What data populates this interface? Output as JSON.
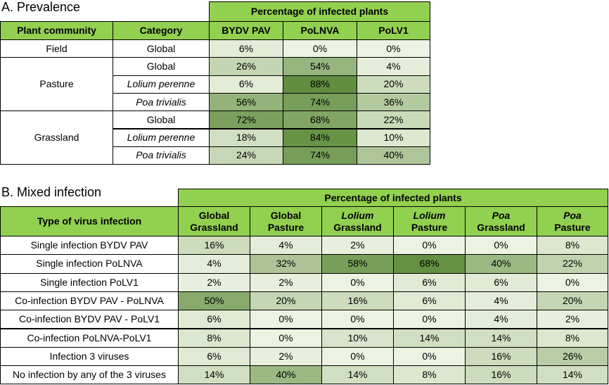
{
  "prevalence": {
    "title": "A. Prevalence",
    "header_group": "Percentage of infected plants",
    "headers": [
      "Plant community",
      "Category",
      "BYDV PAV",
      "PoLNVA",
      "PoLV1"
    ],
    "groups": [
      {
        "community": "Field",
        "rows": [
          {
            "category": "Global",
            "values": [
              "6%",
              "0%",
              "0%"
            ]
          }
        ]
      },
      {
        "community": "Pasture",
        "rows": [
          {
            "category": "Global",
            "values": [
              "26%",
              "54%",
              "4%"
            ]
          },
          {
            "category": "Lolium perenne",
            "values": [
              "6%",
              "88%",
              "20%"
            ]
          },
          {
            "category": "Poa trivialis",
            "values": [
              "56%",
              "74%",
              "36%"
            ]
          }
        ]
      },
      {
        "community": "Grassland",
        "rows": [
          {
            "category": "Global",
            "values": [
              "72%",
              "68%",
              "22%"
            ]
          },
          {
            "category": "Lolium perenne",
            "values": [
              "18%",
              "84%",
              "10%"
            ]
          },
          {
            "category": "Poa trivialis",
            "values": [
              "24%",
              "74%",
              "40%"
            ]
          }
        ]
      }
    ]
  },
  "mixed": {
    "title": "B. Mixed infection",
    "header_group": "Percentage of infected plants",
    "row_header": "Type of virus infection",
    "columns": [
      [
        "Global",
        "Grassland"
      ],
      [
        "Global",
        "Pasture"
      ],
      [
        "Lolium",
        "Grassland"
      ],
      [
        "Lolium",
        "Pasture"
      ],
      [
        "Poa",
        "Grassland"
      ],
      [
        "Poa",
        "Pasture"
      ]
    ],
    "rows": [
      {
        "label": "Single infection BYDV PAV",
        "values": [
          "16%",
          "4%",
          "2%",
          "0%",
          "0%",
          "8%"
        ]
      },
      {
        "label": "Single infection PoLNVA",
        "values": [
          "4%",
          "32%",
          "58%",
          "68%",
          "40%",
          "22%"
        ]
      },
      {
        "label": "Single infection PoLV1",
        "values": [
          "2%",
          "2%",
          "0%",
          "6%",
          "6%",
          "0%"
        ]
      },
      {
        "label": "Co-infection BYDV PAV - PoLNVA",
        "values": [
          "50%",
          "20%",
          "16%",
          "6%",
          "4%",
          "20%"
        ]
      },
      {
        "label": "Co-infection BYDV PAV - PoLV1",
        "values": [
          "6%",
          "0%",
          "0%",
          "0%",
          "4%",
          "2%"
        ]
      },
      {
        "label": "Co-infection PoLNVA-PoLV1",
        "values": [
          "8%",
          "0%",
          "10%",
          "14%",
          "14%",
          "8%"
        ]
      },
      {
        "label": "Infection 3 viruses",
        "values": [
          "6%",
          "2%",
          "0%",
          "0%",
          "16%",
          "26%"
        ]
      },
      {
        "label": "No infection by any of the 3 viruses",
        "values": [
          "14%",
          "40%",
          "14%",
          "8%",
          "16%",
          "14%"
        ]
      }
    ]
  }
}
